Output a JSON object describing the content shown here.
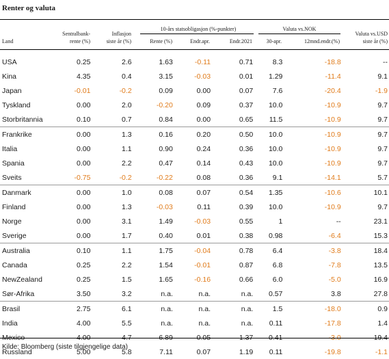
{
  "title": "Renter og valuta",
  "headers": {
    "land": "Land",
    "sentralbank": [
      "Sentralbank-",
      "rente (%)"
    ],
    "inflasjon": [
      "Inflasjon",
      "siste år (%)"
    ],
    "group_10y": "10-års statsobligasjon (%-punkter)",
    "rente": "Rente (%)",
    "endr_apr": "Endr.apr.",
    "endr_2021": "Endr.2021",
    "group_nok": "Valuta vs.NOK",
    "apr30": "30-apr.",
    "mnd12": "12mnd.endr.(%)",
    "usd": [
      "Valuta vs.USD",
      "siste år (%)"
    ]
  },
  "groups": [
    [
      [
        "USA",
        "0.25",
        "2.6",
        "1.63",
        "-0.11",
        "0.71",
        "8.3",
        "-18.8",
        "--"
      ],
      [
        "Kina",
        "4.35",
        "0.4",
        "3.15",
        "-0.03",
        "0.01",
        "1.29",
        "-11.4",
        "9.1"
      ],
      [
        "Japan",
        "-0.01",
        "-0.2",
        "0.09",
        "0.00",
        "0.07",
        "7.6",
        "-20.4",
        "-1.9"
      ],
      [
        "Tyskland",
        "0.00",
        "2.0",
        "-0.20",
        "0.09",
        "0.37",
        "10.0",
        "-10.9",
        "9.7"
      ],
      [
        "Storbritannia",
        "0.10",
        "0.7",
        "0.84",
        "0.00",
        "0.65",
        "11.5",
        "-10.9",
        "9.7"
      ]
    ],
    [
      [
        "Frankrike",
        "0.00",
        "1.3",
        "0.16",
        "0.20",
        "0.50",
        "10.0",
        "-10.9",
        "9.7"
      ],
      [
        "Italia",
        "0.00",
        "1.1",
        "0.90",
        "0.24",
        "0.36",
        "10.0",
        "-10.9",
        "9.7"
      ],
      [
        "Spania",
        "0.00",
        "2.2",
        "0.47",
        "0.14",
        "0.43",
        "10.0",
        "-10.9",
        "9.7"
      ],
      [
        "Sveits",
        "-0.75",
        "-0.2",
        "-0.22",
        "0.08",
        "0.36",
        "9.1",
        "-14.1",
        "5.7"
      ]
    ],
    [
      [
        "Danmark",
        "0.00",
        "1.0",
        "0.08",
        "0.07",
        "0.54",
        "1.35",
        "-10.6",
        "10.1"
      ],
      [
        "Finland",
        "0.00",
        "1.3",
        "-0.03",
        "0.11",
        "0.39",
        "10.0",
        "-10.9",
        "9.7"
      ],
      [
        "Norge",
        "0.00",
        "3.1",
        "1.49",
        "-0.03",
        "0.55",
        "1",
        "--",
        "23.1"
      ],
      [
        "Sverige",
        "0.00",
        "1.7",
        "0.40",
        "0.01",
        "0.38",
        "0.98",
        "-6.4",
        "15.3"
      ]
    ],
    [
      [
        "Australia",
        "0.10",
        "1.1",
        "1.75",
        "-0.04",
        "0.78",
        "6.4",
        "-3.8",
        "18.4"
      ],
      [
        "Canada",
        "0.25",
        "2.2",
        "1.54",
        "-0.01",
        "0.87",
        "6.8",
        "-7.8",
        "13.5"
      ],
      [
        "NewZealand",
        "0.25",
        "1.5",
        "1.65",
        "-0.16",
        "0.66",
        "6.0",
        "-5.0",
        "16.9"
      ],
      [
        "Sør-Afrika",
        "3.50",
        "3.2",
        "n.a.",
        "n.a.",
        "n.a.",
        "0.57",
        "3.8",
        "27.8"
      ]
    ],
    [
      [
        "Brasil",
        "2.75",
        "6.1",
        "n.a.",
        "n.a.",
        "n.a.",
        "1.5",
        "-18.0",
        "0.9"
      ],
      [
        "India",
        "4.00",
        "5.5",
        "n.a.",
        "n.a.",
        "n.a.",
        "0.11",
        "-17.8",
        "1.4"
      ],
      [
        "Mexico",
        "4.00",
        "4.7",
        "6.89",
        "0.05",
        "1.37",
        "0.41",
        "-3.0",
        "19.4"
      ],
      [
        "Russland",
        "5.00",
        "5.8",
        "7.11",
        "0.07",
        "1.19",
        "0.11",
        "-19.8",
        "-1.1"
      ]
    ]
  ],
  "footer": "Kilde: Bloomberg (siste tilgjengelige data)"
}
